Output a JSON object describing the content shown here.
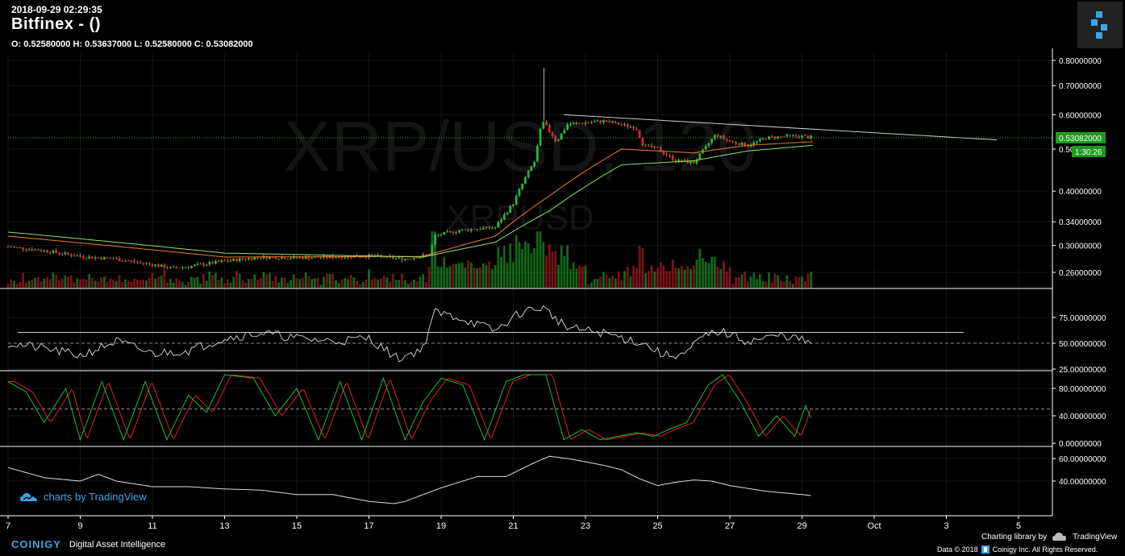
{
  "header": {
    "timestamp": "2018-09-29 02:29:35",
    "title": "Bitfinex -  ()",
    "ohlc": "O: 0.52580000 H: 0.53637000 L: 0.52580000 C: 0.53082000"
  },
  "watermark": {
    "pair_big": "XRP/USD, 120",
    "pair_small": "XRPUSD"
  },
  "branding": {
    "tv_label": "charts by TradingView",
    "coinigy": "COINIGY",
    "tagline": "Digital Asset Intelligence",
    "charting_lib": "Charting library by",
    "tv_name": "TradingView",
    "copyright": "Data © 2018",
    "copyright_tail": "Coinigy Inc. All Rights Reserved."
  },
  "colors": {
    "up": "#1fbd2b",
    "down": "#e0212a",
    "ema_short": "#f07b24",
    "ema_long": "#8fe06a",
    "price_tag": "#1f9a1f"
  },
  "price_tag": {
    "value": "0.53082000",
    "countdown": "1:30:26"
  },
  "chart_data": [
    {
      "type": "candlestick",
      "pane": "price",
      "scale": "log",
      "y_ticks": [
        "0.80000000",
        "0.70000000",
        "0.60000000",
        "0.50000000",
        "0.40000000",
        "0.34000000",
        "0.30000000",
        "0.26000000"
      ],
      "y_tick_values": [
        0.8,
        0.7,
        0.6,
        0.5,
        0.4,
        0.34,
        0.3,
        0.26
      ],
      "x_ticks": [
        "7",
        "9",
        "11",
        "13",
        "15",
        "17",
        "19",
        "21",
        "23",
        "25",
        "27",
        "29",
        "Oct",
        "3",
        "5"
      ],
      "series": [
        {
          "name": "close",
          "anchors": [
            [
              7,
              0.298
            ],
            [
              8,
              0.292
            ],
            [
              9,
              0.283
            ],
            [
              10,
              0.279
            ],
            [
              11,
              0.271
            ],
            [
              11.5,
              0.266
            ],
            [
              12,
              0.268
            ],
            [
              13,
              0.276
            ],
            [
              14,
              0.282
            ],
            [
              15,
              0.281
            ],
            [
              16,
              0.282
            ],
            [
              17,
              0.284
            ],
            [
              18,
              0.279
            ],
            [
              18.7,
              0.286
            ],
            [
              18.8,
              0.315
            ],
            [
              19.5,
              0.325
            ],
            [
              20.5,
              0.33
            ],
            [
              21,
              0.375
            ],
            [
              21.4,
              0.44
            ],
            [
              21.6,
              0.47
            ],
            [
              21.8,
              0.58
            ],
            [
              22.2,
              0.52
            ],
            [
              22.5,
              0.57
            ],
            [
              23.5,
              0.58
            ],
            [
              24.4,
              0.56
            ],
            [
              24.6,
              0.51
            ],
            [
              25,
              0.5
            ],
            [
              25.5,
              0.47
            ],
            [
              26,
              0.465
            ],
            [
              26.3,
              0.5
            ],
            [
              26.6,
              0.54
            ],
            [
              27,
              0.52
            ],
            [
              27.5,
              0.51
            ],
            [
              28,
              0.53
            ],
            [
              28.5,
              0.535
            ],
            [
              29,
              0.535
            ],
            [
              29.3,
              0.5308
            ]
          ]
        },
        {
          "name": "ema_short",
          "anchors": [
            [
              7,
              0.315
            ],
            [
              13,
              0.282
            ],
            [
              18.5,
              0.283
            ],
            [
              20.5,
              0.315
            ],
            [
              22,
              0.39
            ],
            [
              24,
              0.5
            ],
            [
              26,
              0.49
            ],
            [
              27.5,
              0.51
            ],
            [
              29.3,
              0.52
            ]
          ]
        },
        {
          "name": "ema_long",
          "anchors": [
            [
              7,
              0.322
            ],
            [
              13,
              0.288
            ],
            [
              18.5,
              0.282
            ],
            [
              20.5,
              0.305
            ],
            [
              22,
              0.36
            ],
            [
              24,
              0.46
            ],
            [
              26,
              0.47
            ],
            [
              27.5,
              0.495
            ],
            [
              29.3,
              0.51
            ]
          ]
        }
      ],
      "trendline": {
        "from": [
          22.4,
          0.6
        ],
        "to": [
          34.4,
          0.525
        ]
      }
    },
    {
      "type": "line",
      "pane": "rsi",
      "y_ticks": [
        "75.00000000",
        "50.00000000",
        "25.00000000"
      ],
      "y_tick_values": [
        75,
        50,
        25
      ],
      "hline": 60.5,
      "anchors": [
        [
          7,
          50
        ],
        [
          8,
          45
        ],
        [
          9,
          38
        ],
        [
          10,
          52
        ],
        [
          11,
          40
        ],
        [
          12,
          43
        ],
        [
          13,
          55
        ],
        [
          14,
          60
        ],
        [
          15,
          55
        ],
        [
          16,
          52
        ],
        [
          17,
          55
        ],
        [
          17.8,
          35
        ],
        [
          18.5,
          45
        ],
        [
          18.8,
          80
        ],
        [
          19.5,
          75
        ],
        [
          20.5,
          62
        ],
        [
          21.2,
          80
        ],
        [
          21.8,
          85
        ],
        [
          22.5,
          65
        ],
        [
          23.5,
          60
        ],
        [
          24.6,
          50
        ],
        [
          25.2,
          38
        ],
        [
          25.8,
          40
        ],
        [
          26.2,
          55
        ],
        [
          26.7,
          62
        ],
        [
          27.5,
          52
        ],
        [
          28.5,
          58
        ],
        [
          29,
          53
        ],
        [
          29.3,
          50
        ]
      ]
    },
    {
      "type": "line",
      "pane": "stoch",
      "y_ticks": [
        "80.00000000",
        "40.00000000",
        "0.00000000"
      ],
      "y_tick_values": [
        80,
        40,
        0
      ],
      "hline": 50,
      "anchors": [
        [
          7,
          90
        ],
        [
          7.5,
          75
        ],
        [
          8,
          30
        ],
        [
          8.6,
          80
        ],
        [
          9,
          5
        ],
        [
          9.6,
          90
        ],
        [
          10.2,
          5
        ],
        [
          10.8,
          90
        ],
        [
          11.4,
          5
        ],
        [
          12,
          70
        ],
        [
          12.5,
          45
        ],
        [
          13,
          100
        ],
        [
          13.8,
          95
        ],
        [
          14.4,
          40
        ],
        [
          15,
          80
        ],
        [
          15.6,
          5
        ],
        [
          16.2,
          90
        ],
        [
          16.8,
          5
        ],
        [
          17.4,
          95
        ],
        [
          18,
          5
        ],
        [
          18.5,
          60
        ],
        [
          19,
          95
        ],
        [
          19.6,
          85
        ],
        [
          20.2,
          5
        ],
        [
          20.8,
          90
        ],
        [
          21.3,
          100
        ],
        [
          21.9,
          100
        ],
        [
          22.4,
          5
        ],
        [
          22.9,
          20
        ],
        [
          23.4,
          5
        ],
        [
          23.9,
          10
        ],
        [
          24.4,
          15
        ],
        [
          24.9,
          10
        ],
        [
          25.3,
          20
        ],
        [
          25.8,
          30
        ],
        [
          26.4,
          85
        ],
        [
          26.8,
          100
        ],
        [
          27.3,
          60
        ],
        [
          27.8,
          10
        ],
        [
          28.3,
          40
        ],
        [
          28.8,
          10
        ],
        [
          29.1,
          55
        ],
        [
          29.3,
          30
        ]
      ]
    },
    {
      "type": "line",
      "pane": "oscillator",
      "y_ticks": [
        "60.00000000",
        "40.00000000"
      ],
      "y_tick_values": [
        60,
        40
      ],
      "anchors": [
        [
          7,
          52
        ],
        [
          8,
          43
        ],
        [
          9,
          40
        ],
        [
          9.5,
          46
        ],
        [
          10,
          40
        ],
        [
          11,
          35
        ],
        [
          12,
          35
        ],
        [
          13,
          33
        ],
        [
          14,
          32
        ],
        [
          15,
          28
        ],
        [
          16,
          28
        ],
        [
          17,
          22
        ],
        [
          17.7,
          20
        ],
        [
          18,
          22
        ],
        [
          19,
          34
        ],
        [
          20,
          44
        ],
        [
          20.8,
          44
        ],
        [
          21.5,
          55
        ],
        [
          22,
          62
        ],
        [
          22.5,
          60
        ],
        [
          23.5,
          54
        ],
        [
          24,
          50
        ],
        [
          24.5,
          42
        ],
        [
          25,
          36
        ],
        [
          25.5,
          39
        ],
        [
          26,
          41
        ],
        [
          26.5,
          40
        ],
        [
          27,
          36
        ],
        [
          28,
          31
        ],
        [
          29,
          28
        ],
        [
          29.3,
          27
        ]
      ]
    }
  ]
}
